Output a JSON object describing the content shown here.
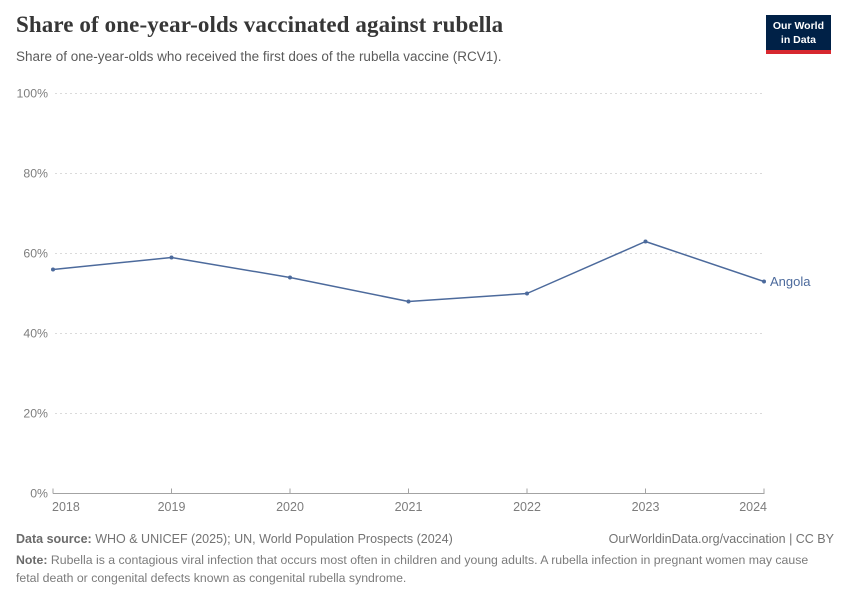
{
  "header": {
    "title": "Share of one-year-olds vaccinated against rubella",
    "subtitle": "Share of one-year-olds who received the first does of the rubella vaccine (RCV1).",
    "logo": {
      "line1": "Our World",
      "line2": "in Data"
    }
  },
  "chart_data": {
    "type": "line",
    "title": "Share of one-year-olds vaccinated against rubella",
    "x": [
      2018,
      2019,
      2020,
      2021,
      2022,
      2023,
      2024
    ],
    "series": [
      {
        "name": "Angola",
        "values": [
          56,
          59,
          54,
          48,
          50,
          63,
          53
        ]
      }
    ],
    "xlabel": "",
    "ylabel": "",
    "ylim": [
      0,
      100
    ],
    "yticks": [
      0,
      20,
      40,
      60,
      80,
      100
    ],
    "ytick_suffix": "%",
    "grid": "horizontal-dashed",
    "legend_position": "end-of-line-label"
  },
  "footer": {
    "data_source_label": "Data source:",
    "data_source_text": "WHO & UNICEF (2025); UN, World Population Prospects (2024)",
    "link": "OurWorldinData.org/vaccination | CC BY",
    "note_label": "Note:",
    "note_text": "Rubella is a contagious viral infection that occurs most often in children and young adults. A rubella infection in pregnant women may cause fetal death or congenital defects known as congenital rubella syndrome."
  },
  "colors": {
    "line": "#4C6A9C",
    "series_label": "#4C6A9C",
    "grid": "#dadada",
    "axis": "#a3a3a3",
    "tick_label": "#7d7d7d",
    "logo_bg": "#002147",
    "logo_red": "#d7282f",
    "title_text": "#363636",
    "subtitle_text": "#5b5b5b",
    "footer_text": "#737373"
  }
}
